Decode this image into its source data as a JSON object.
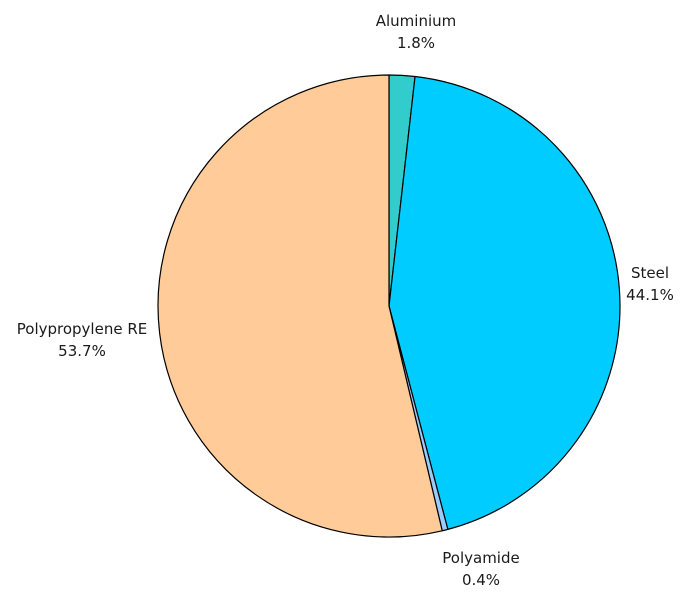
{
  "chart_data": {
    "type": "pie",
    "start_angle_deg": 0,
    "direction": "clockwise",
    "slices": [
      {
        "label": "Aluminium",
        "value": 1.8,
        "label_text": "1.8%",
        "color": "#33cccc"
      },
      {
        "label": "Steel",
        "value": 44.1,
        "label_text": "44.1%",
        "color": "#00ccff"
      },
      {
        "label": "Polyamide",
        "value": 0.4,
        "label_text": "0.4%",
        "color": "#99ccff"
      },
      {
        "label": "Polypropylene RE",
        "value": 53.7,
        "label_text": "53.7%",
        "color": "#ffcc99"
      }
    ]
  }
}
